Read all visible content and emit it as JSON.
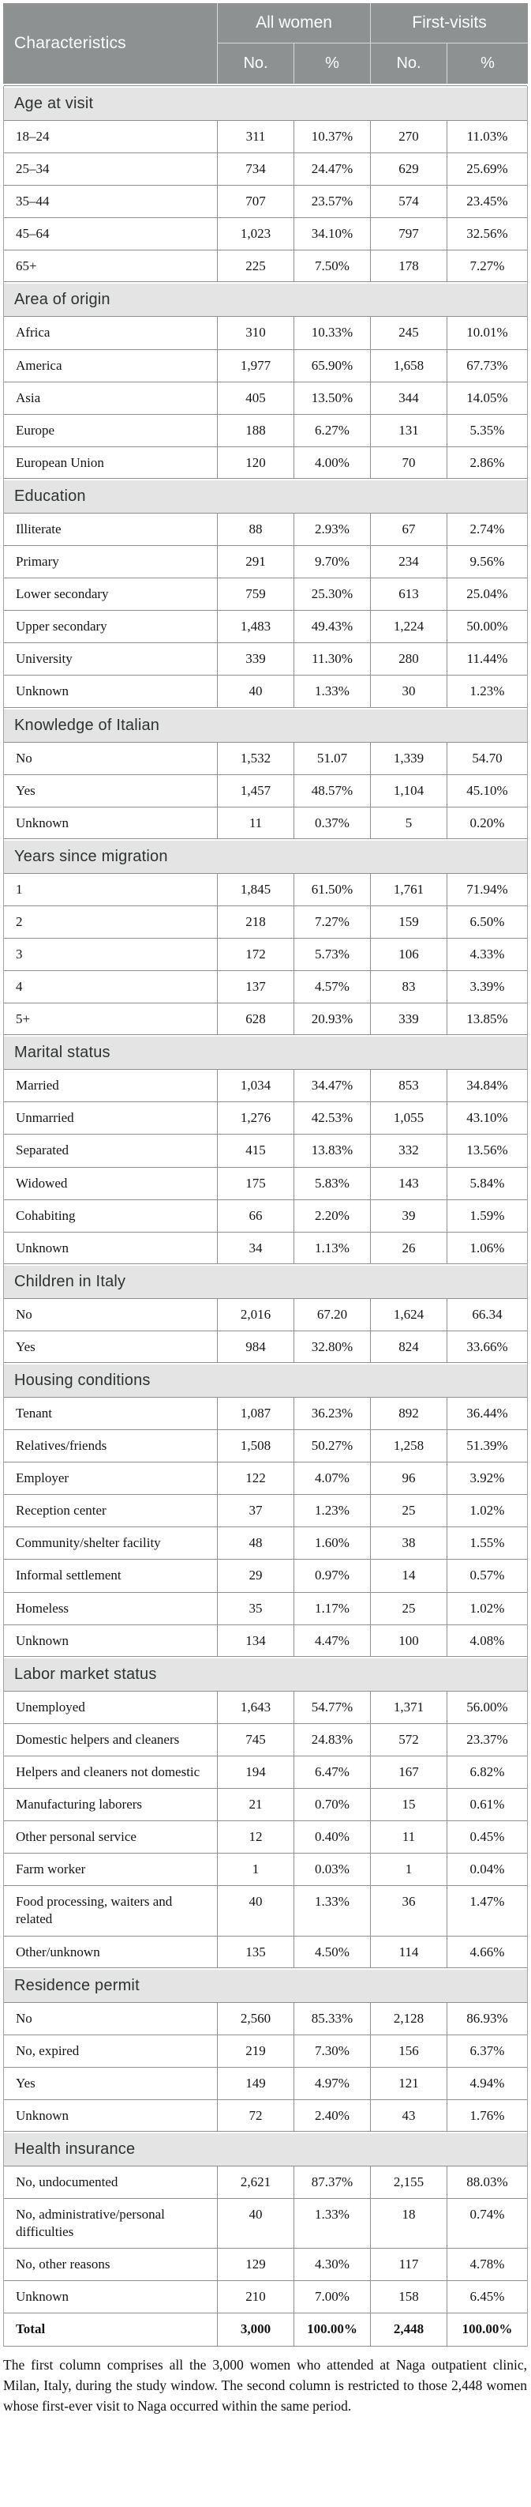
{
  "colors": {
    "header_bg": "#8e9192",
    "section_bg": "#e3e4e3",
    "border": "#8f8f8f"
  },
  "table": {
    "header": {
      "characteristics": "Characteristics",
      "all_women": "All women",
      "first_visits": "First-visits",
      "no_label": "No.",
      "pct_label": "%"
    },
    "sections": [
      {
        "title": "Age at visit",
        "rows": [
          [
            "18–24",
            "311",
            "10.37%",
            "270",
            "11.03%"
          ],
          [
            "25–34",
            "734",
            "24.47%",
            "629",
            "25.69%"
          ],
          [
            "35–44",
            "707",
            "23.57%",
            "574",
            "23.45%"
          ],
          [
            "45–64",
            "1,023",
            "34.10%",
            "797",
            "32.56%"
          ],
          [
            "65+",
            "225",
            "7.50%",
            "178",
            "7.27%"
          ]
        ]
      },
      {
        "title": "Area of origin",
        "rows": [
          [
            "Africa",
            "310",
            "10.33%",
            "245",
            "10.01%"
          ],
          [
            "America",
            "1,977",
            "65.90%",
            "1,658",
            "67.73%"
          ],
          [
            "Asia",
            "405",
            "13.50%",
            "344",
            "14.05%"
          ],
          [
            "Europe",
            "188",
            "6.27%",
            "131",
            "5.35%"
          ],
          [
            "European Union",
            "120",
            "4.00%",
            "70",
            "2.86%"
          ]
        ]
      },
      {
        "title": "Education",
        "rows": [
          [
            "Illiterate",
            "88",
            "2.93%",
            "67",
            "2.74%"
          ],
          [
            "Primary",
            "291",
            "9.70%",
            "234",
            "9.56%"
          ],
          [
            "Lower secondary",
            "759",
            "25.30%",
            "613",
            "25.04%"
          ],
          [
            "Upper secondary",
            "1,483",
            "49.43%",
            "1,224",
            "50.00%"
          ],
          [
            "University",
            "339",
            "11.30%",
            "280",
            "11.44%"
          ],
          [
            "Unknown",
            "40",
            "1.33%",
            "30",
            "1.23%"
          ]
        ]
      },
      {
        "title": "Knowledge of Italian",
        "rows": [
          [
            "No",
            "1,532",
            "51.07",
            "1,339",
            "54.70"
          ],
          [
            "Yes",
            "1,457",
            "48.57%",
            "1,104",
            "45.10%"
          ],
          [
            "Unknown",
            "11",
            "0.37%",
            "5",
            "0.20%"
          ]
        ]
      },
      {
        "title": "Years since migration",
        "rows": [
          [
            "1",
            "1,845",
            "61.50%",
            "1,761",
            "71.94%"
          ],
          [
            "2",
            "218",
            "7.27%",
            "159",
            "6.50%"
          ],
          [
            "3",
            "172",
            "5.73%",
            "106",
            "4.33%"
          ],
          [
            "4",
            "137",
            "4.57%",
            "83",
            "3.39%"
          ],
          [
            "5+",
            "628",
            "20.93%",
            "339",
            "13.85%"
          ]
        ]
      },
      {
        "title": "Marital status",
        "rows": [
          [
            "Married",
            "1,034",
            "34.47%",
            "853",
            "34.84%"
          ],
          [
            "Unmarried",
            "1,276",
            "42.53%",
            "1,055",
            "43.10%"
          ],
          [
            "Separated",
            "415",
            "13.83%",
            "332",
            "13.56%"
          ],
          [
            "Widowed",
            "175",
            "5.83%",
            "143",
            "5.84%"
          ],
          [
            "Cohabiting",
            "66",
            "2.20%",
            "39",
            "1.59%"
          ],
          [
            "Unknown",
            "34",
            "1.13%",
            "26",
            "1.06%"
          ]
        ]
      },
      {
        "title": "Children in Italy",
        "rows": [
          [
            "No",
            "2,016",
            "67.20",
            "1,624",
            "66.34"
          ],
          [
            "Yes",
            "984",
            "32.80%",
            "824",
            "33.66%"
          ]
        ]
      },
      {
        "title": "Housing conditions",
        "rows": [
          [
            "Tenant",
            "1,087",
            "36.23%",
            "892",
            "36.44%"
          ],
          [
            "Relatives/friends",
            "1,508",
            "50.27%",
            "1,258",
            "51.39%"
          ],
          [
            "Employer",
            "122",
            "4.07%",
            "96",
            "3.92%"
          ],
          [
            "Reception center",
            "37",
            "1.23%",
            "25",
            "1.02%"
          ],
          [
            "Community/shelter facility",
            "48",
            "1.60%",
            "38",
            "1.55%"
          ],
          [
            "Informal settlement",
            "29",
            "0.97%",
            "14",
            "0.57%"
          ],
          [
            "Homeless",
            "35",
            "1.17%",
            "25",
            "1.02%"
          ],
          [
            "Unknown",
            "134",
            "4.47%",
            "100",
            "4.08%"
          ]
        ]
      },
      {
        "title": "Labor market status",
        "rows": [
          [
            "Unemployed",
            "1,643",
            "54.77%",
            "1,371",
            "56.00%"
          ],
          [
            "Domestic helpers and cleaners",
            "745",
            "24.83%",
            "572",
            "23.37%"
          ],
          [
            "Helpers and cleaners not domestic",
            "194",
            "6.47%",
            "167",
            "6.82%"
          ],
          [
            "Manufacturing laborers",
            "21",
            "0.70%",
            "15",
            "0.61%"
          ],
          [
            "Other personal service",
            "12",
            "0.40%",
            "11",
            "0.45%"
          ],
          [
            "Farm worker",
            "1",
            "0.03%",
            "1",
            "0.04%"
          ],
          [
            "Food processing, waiters and related",
            "40",
            "1.33%",
            "36",
            "1.47%"
          ],
          [
            "Other/unknown",
            "135",
            "4.50%",
            "114",
            "4.66%"
          ]
        ]
      },
      {
        "title": "Residence permit",
        "rows": [
          [
            "No",
            "2,560",
            "85.33%",
            "2,128",
            "86.93%"
          ],
          [
            "No, expired",
            "219",
            "7.30%",
            "156",
            "6.37%"
          ],
          [
            "Yes",
            "149",
            "4.97%",
            "121",
            "4.94%"
          ],
          [
            "Unknown",
            "72",
            "2.40%",
            "43",
            "1.76%"
          ]
        ]
      },
      {
        "title": "Health insurance",
        "rows": [
          [
            "No, undocumented",
            "2,621",
            "87.37%",
            "2,155",
            "88.03%"
          ],
          [
            "No, administrative/personal difficulties",
            "40",
            "1.33%",
            "18",
            "0.74%"
          ],
          [
            "No, other reasons",
            "129",
            "4.30%",
            "117",
            "4.78%"
          ],
          [
            "Unknown",
            "210",
            "7.00%",
            "158",
            "6.45%"
          ]
        ]
      }
    ],
    "total": [
      "Total",
      "3,000",
      "100.00%",
      "2,448",
      "100.00%"
    ]
  },
  "footnote": "The first column comprises all the 3,000 women who attended at Naga outpatient clinic, Milan, Italy, during the study window. The second column is restricted to those 2,448 women whose first-ever visit to Naga occurred within the same period."
}
